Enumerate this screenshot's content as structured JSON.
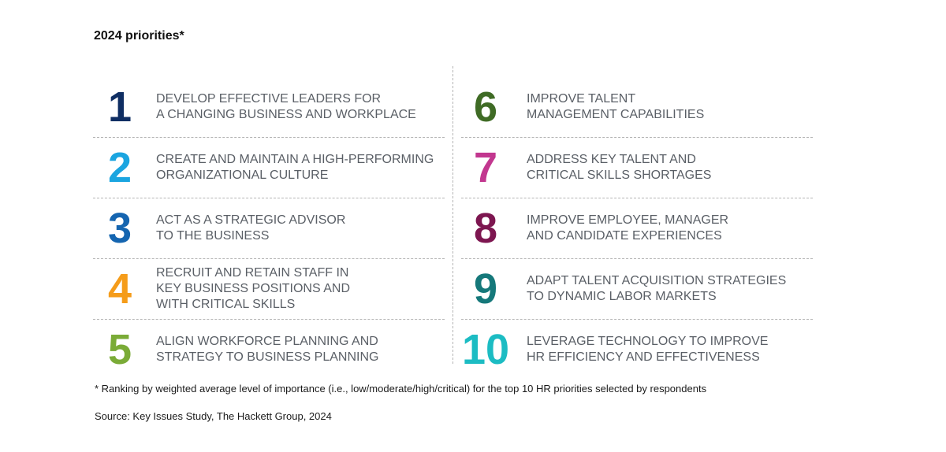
{
  "title": "2024 priorities*",
  "priorities_left": [
    {
      "number": "1",
      "text": "DEVELOP EFFECTIVE LEADERS FOR\nA CHANGING BUSINESS AND WORKPLACE",
      "color": "#0f2e63"
    },
    {
      "number": "2",
      "text": "CREATE AND MAINTAIN A HIGH-PERFORMING\nORGANIZATIONAL CULTURE",
      "color": "#1ba5e0"
    },
    {
      "number": "3",
      "text": "ACT AS A STRATEGIC ADVISOR\nTO THE BUSINESS",
      "color": "#1565b0"
    },
    {
      "number": "4",
      "text": "RECRUIT AND RETAIN STAFF IN\nKEY BUSINESS POSITIONS AND\nWITH CRITICAL SKILLS",
      "color": "#f59c1a"
    },
    {
      "number": "5",
      "text": "ALIGN WORKFORCE PLANNING AND\nSTRATEGY TO BUSINESS PLANNING",
      "color": "#7aab37"
    }
  ],
  "priorities_right": [
    {
      "number": "6",
      "text": "IMPROVE TALENT\nMANAGEMENT CAPABILITIES",
      "color": "#3f6b25"
    },
    {
      "number": "7",
      "text": "ADDRESS KEY TALENT AND\nCRITICAL SKILLS SHORTAGES",
      "color": "#c2378f"
    },
    {
      "number": "8",
      "text": "IMPROVE EMPLOYEE, MANAGER\nAND CANDIDATE EXPERIENCES",
      "color": "#7d1650"
    },
    {
      "number": "9",
      "text": "ADAPT TALENT ACQUISITION STRATEGIES\nTO DYNAMIC LABOR MARKETS",
      "color": "#15787a"
    },
    {
      "number": "10",
      "text": "LEVERAGE TECHNOLOGY TO IMPROVE\nHR EFFICIENCY AND EFFECTIVENESS",
      "color": "#1cbcc3"
    }
  ],
  "footnote": "* Ranking by weighted average level of importance (i.e., low/moderate/high/critical) for the top 10 HR priorities selected by respondents",
  "source": "Source: Key Issues Study, The Hackett Group, 2024"
}
